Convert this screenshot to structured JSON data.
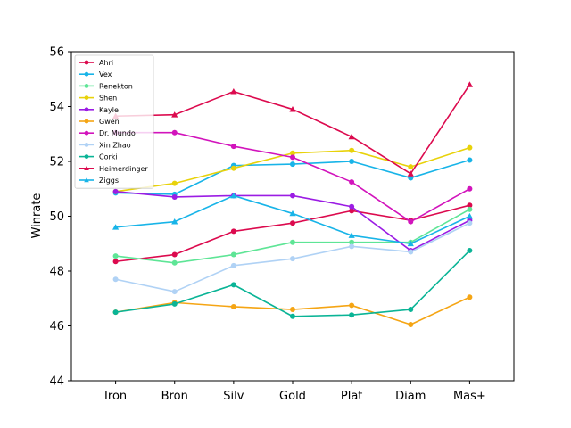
{
  "chart_data": {
    "type": "line",
    "title": "",
    "xlabel": "",
    "ylabel": "Winrate",
    "categories": [
      "Iron",
      "Bron",
      "Silv",
      "Gold",
      "Plat",
      "Diam",
      "Mas+"
    ],
    "ylim": [
      44,
      56
    ],
    "yticks": [
      44,
      46,
      48,
      50,
      52,
      54,
      56
    ],
    "grid": false,
    "legend_position": "upper-left",
    "series": [
      {
        "name": "Ahri",
        "color": "#dc0a4e",
        "marker": "circle",
        "values": [
          48.35,
          48.6,
          49.45,
          49.75,
          50.2,
          49.85,
          50.4
        ]
      },
      {
        "name": "Vex",
        "color": "#18b4e8",
        "marker": "circle",
        "values": [
          50.85,
          50.8,
          51.85,
          51.9,
          52.0,
          51.4,
          52.05
        ]
      },
      {
        "name": "Renekton",
        "color": "#5ee596",
        "marker": "circle",
        "values": [
          48.55,
          48.3,
          48.6,
          49.05,
          49.05,
          49.05,
          50.25
        ]
      },
      {
        "name": "Shen",
        "color": "#e8d20a",
        "marker": "circle",
        "values": [
          50.9,
          51.2,
          51.75,
          52.3,
          52.4,
          51.8,
          52.5
        ]
      },
      {
        "name": "Kayle",
        "color": "#9b1ce4",
        "marker": "circle",
        "values": [
          50.9,
          50.7,
          50.75,
          50.75,
          50.35,
          48.75,
          49.85
        ]
      },
      {
        "name": "Gwen",
        "color": "#f5a514",
        "marker": "circle",
        "values": [
          46.5,
          46.85,
          46.7,
          46.6,
          46.75,
          46.05,
          47.05
        ]
      },
      {
        "name": "Dr. Mundo",
        "color": "#d214bc",
        "marker": "circle",
        "values": [
          53.05,
          53.05,
          52.55,
          52.15,
          51.25,
          49.8,
          51.0
        ]
      },
      {
        "name": "Xin Zhao",
        "color": "#b0d2f5",
        "marker": "circle",
        "values": [
          47.7,
          47.25,
          48.2,
          48.45,
          48.9,
          48.7,
          49.75
        ]
      },
      {
        "name": "Corki",
        "color": "#0ab496",
        "marker": "circle",
        "values": [
          46.5,
          46.8,
          47.5,
          46.35,
          46.4,
          46.6,
          48.75
        ]
      },
      {
        "name": "Heimerdinger",
        "color": "#dc0a4e",
        "marker": "triangle",
        "values": [
          53.65,
          53.7,
          54.55,
          53.9,
          52.9,
          51.55,
          54.8
        ]
      },
      {
        "name": "Ziggs",
        "color": "#18b4e8",
        "marker": "triangle",
        "values": [
          49.6,
          49.8,
          50.75,
          50.1,
          49.3,
          49.0,
          50.0
        ]
      }
    ]
  }
}
